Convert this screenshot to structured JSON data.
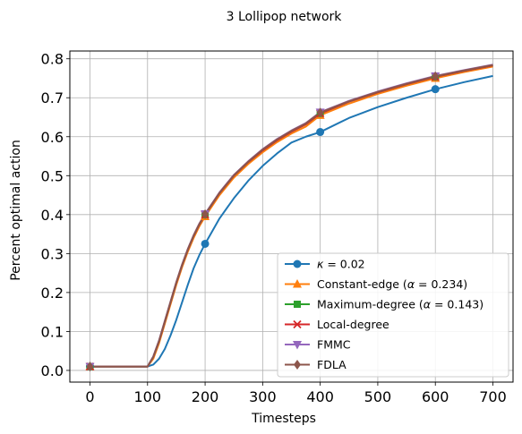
{
  "chart_data": {
    "type": "line",
    "title": "3 Lollipop network",
    "xlabel": "Timesteps",
    "ylabel": "Percent optimal action",
    "xlim": [
      -35,
      735
    ],
    "ylim": [
      -0.03,
      0.82
    ],
    "xticks": [
      0,
      100,
      200,
      300,
      400,
      500,
      600,
      700
    ],
    "yticks": [
      0.0,
      0.1,
      0.2,
      0.3,
      0.4,
      0.5,
      0.6,
      0.7,
      0.8
    ],
    "grid": true,
    "legend_position": "bottom-right",
    "marker_x": [
      0,
      200,
      400,
      600
    ],
    "series": [
      {
        "legend": [
          "κ",
          " = 0.02"
        ],
        "color": "#1f77b4",
        "marker": "circle",
        "x": [
          0,
          100,
          110,
          120,
          130,
          140,
          150,
          160,
          170,
          180,
          190,
          200,
          225,
          250,
          275,
          300,
          325,
          350,
          375,
          400,
          450,
          500,
          550,
          600,
          650,
          700
        ],
        "y": [
          0.01,
          0.01,
          0.015,
          0.03,
          0.055,
          0.09,
          0.13,
          0.175,
          0.22,
          0.262,
          0.296,
          0.325,
          0.39,
          0.442,
          0.487,
          0.525,
          0.557,
          0.585,
          0.6,
          0.612,
          0.648,
          0.676,
          0.7,
          0.722,
          0.74,
          0.756
        ]
      },
      {
        "legend": [
          "Constant-edge (",
          "α",
          " = 0.234)"
        ],
        "color": "#ff7f0e",
        "marker": "triangle",
        "x": [
          0,
          100,
          110,
          120,
          130,
          140,
          150,
          160,
          170,
          180,
          190,
          200,
          225,
          250,
          275,
          300,
          325,
          350,
          375,
          400,
          450,
          500,
          550,
          600,
          650,
          700
        ],
        "y": [
          0.01,
          0.01,
          0.03,
          0.07,
          0.12,
          0.17,
          0.22,
          0.265,
          0.305,
          0.34,
          0.37,
          0.395,
          0.45,
          0.495,
          0.53,
          0.56,
          0.586,
          0.608,
          0.626,
          0.655,
          0.685,
          0.71,
          0.731,
          0.75,
          0.766,
          0.78
        ]
      },
      {
        "legend": [
          "Maximum-degree (",
          "α",
          " = 0.143)"
        ],
        "color": "#2ca02c",
        "marker": "square",
        "x": [
          0,
          100,
          110,
          120,
          130,
          140,
          150,
          160,
          170,
          180,
          190,
          200,
          225,
          250,
          275,
          300,
          325,
          350,
          375,
          400,
          450,
          500,
          550,
          600,
          650,
          700
        ],
        "y": [
          0.01,
          0.01,
          0.035,
          0.075,
          0.125,
          0.175,
          0.225,
          0.27,
          0.31,
          0.345,
          0.375,
          0.4,
          0.455,
          0.5,
          0.535,
          0.565,
          0.591,
          0.613,
          0.632,
          0.66,
          0.69,
          0.714,
          0.735,
          0.754,
          0.769,
          0.783
        ]
      },
      {
        "legend": [
          "Local-degree"
        ],
        "color": "#d62728",
        "marker": "x",
        "x": [
          0,
          100,
          110,
          120,
          130,
          140,
          150,
          160,
          170,
          180,
          190,
          200,
          225,
          250,
          275,
          300,
          325,
          350,
          375,
          400,
          450,
          500,
          550,
          600,
          650,
          700
        ],
        "y": [
          0.01,
          0.01,
          0.035,
          0.075,
          0.125,
          0.175,
          0.225,
          0.27,
          0.31,
          0.345,
          0.375,
          0.4,
          0.455,
          0.5,
          0.535,
          0.565,
          0.591,
          0.613,
          0.632,
          0.66,
          0.69,
          0.714,
          0.735,
          0.754,
          0.769,
          0.783
        ]
      },
      {
        "legend": [
          "FMMC"
        ],
        "color": "#9467bd",
        "marker": "triangle-down",
        "x": [
          0,
          100,
          110,
          120,
          130,
          140,
          150,
          160,
          170,
          180,
          190,
          200,
          225,
          250,
          275,
          300,
          325,
          350,
          375,
          400,
          450,
          500,
          550,
          600,
          650,
          700
        ],
        "y": [
          0.01,
          0.01,
          0.036,
          0.077,
          0.127,
          0.177,
          0.227,
          0.272,
          0.312,
          0.347,
          0.377,
          0.402,
          0.457,
          0.502,
          0.537,
          0.568,
          0.594,
          0.616,
          0.635,
          0.663,
          0.692,
          0.716,
          0.737,
          0.756,
          0.771,
          0.785
        ]
      },
      {
        "legend": [
          "FDLA"
        ],
        "color": "#8c564b",
        "marker": "diamond",
        "x": [
          0,
          100,
          110,
          120,
          130,
          140,
          150,
          160,
          170,
          180,
          190,
          200,
          225,
          250,
          275,
          300,
          325,
          350,
          375,
          400,
          450,
          500,
          550,
          600,
          650,
          700
        ],
        "y": [
          0.01,
          0.01,
          0.035,
          0.076,
          0.126,
          0.176,
          0.226,
          0.271,
          0.311,
          0.346,
          0.376,
          0.401,
          0.456,
          0.501,
          0.536,
          0.567,
          0.593,
          0.615,
          0.634,
          0.662,
          0.691,
          0.715,
          0.736,
          0.755,
          0.77,
          0.784
        ]
      }
    ]
  }
}
